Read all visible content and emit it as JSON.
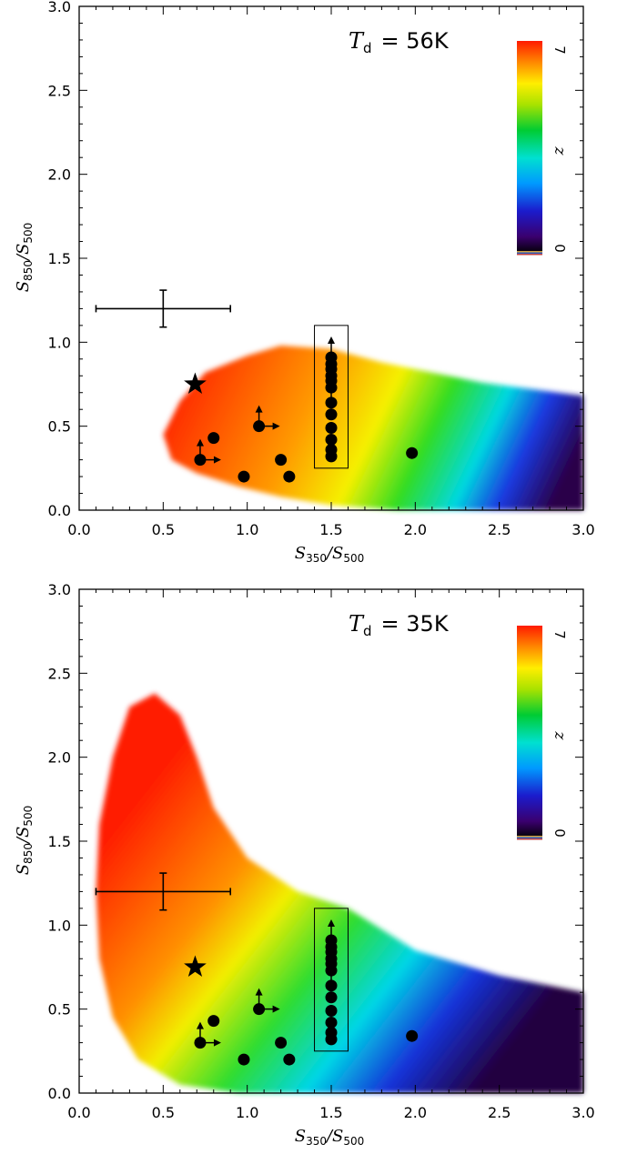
{
  "chart_data": [
    {
      "type": "heatmap",
      "temperature": {
        "symbol": "T",
        "sub": "d",
        "value": "=  56K"
      },
      "xlabel": {
        "main": "S",
        "sub1": "350",
        "mid": "/S",
        "sub2": "500"
      },
      "ylabel": {
        "main": "S",
        "sub1": "850",
        "mid": "/S",
        "sub2": "500"
      },
      "xlim": [
        0.0,
        3.0
      ],
      "ylim": [
        0.0,
        3.0
      ],
      "xticks": [
        "0.0",
        "0.5",
        "1.0",
        "1.5",
        "2.0",
        "2.5",
        "3.0"
      ],
      "yticks": [
        "0.0",
        "0.5",
        "1.0",
        "1.5",
        "2.0",
        "2.5",
        "3.0"
      ],
      "colorbar": {
        "label": "z",
        "min": "0",
        "max": "7"
      },
      "region_outline": [
        [
          0.5,
          0.45
        ],
        [
          0.6,
          0.65
        ],
        [
          0.75,
          0.82
        ],
        [
          1.0,
          0.92
        ],
        [
          1.2,
          0.98
        ],
        [
          1.5,
          0.96
        ],
        [
          1.8,
          0.88
        ],
        [
          2.1,
          0.82
        ],
        [
          2.4,
          0.76
        ],
        [
          2.7,
          0.72
        ],
        [
          3.0,
          0.68
        ],
        [
          3.0,
          0.0
        ],
        [
          1.9,
          0.0
        ],
        [
          1.5,
          0.03
        ],
        [
          1.2,
          0.08
        ],
        [
          0.95,
          0.14
        ],
        [
          0.7,
          0.22
        ],
        [
          0.55,
          0.3
        ]
      ],
      "errorbar": {
        "x": 0.5,
        "y": 1.2,
        "xerr": 0.4,
        "yerr": 0.11
      },
      "star": {
        "x": 0.69,
        "y": 0.75
      },
      "box": {
        "x0": 1.4,
        "x1": 1.6,
        "y0": 0.25,
        "y1": 1.1
      },
      "points": [
        {
          "x": 0.72,
          "y": 0.3,
          "up": true,
          "right": true
        },
        {
          "x": 0.8,
          "y": 0.43
        },
        {
          "x": 0.98,
          "y": 0.2
        },
        {
          "x": 1.07,
          "y": 0.5,
          "up": true,
          "right": true
        },
        {
          "x": 1.2,
          "y": 0.3
        },
        {
          "x": 1.25,
          "y": 0.2
        },
        {
          "x": 1.98,
          "y": 0.34
        },
        {
          "x": 1.5,
          "y": 0.32
        },
        {
          "x": 1.5,
          "y": 0.36
        },
        {
          "x": 1.5,
          "y": 0.42
        },
        {
          "x": 1.5,
          "y": 0.49
        },
        {
          "x": 1.5,
          "y": 0.57
        },
        {
          "x": 1.5,
          "y": 0.64,
          "up": true
        },
        {
          "x": 1.5,
          "y": 0.73
        },
        {
          "x": 1.5,
          "y": 0.77
        },
        {
          "x": 1.5,
          "y": 0.8
        },
        {
          "x": 1.5,
          "y": 0.84
        },
        {
          "x": 1.5,
          "y": 0.87
        },
        {
          "x": 1.5,
          "y": 0.91,
          "up": true
        }
      ]
    },
    {
      "type": "heatmap",
      "temperature": {
        "symbol": "T",
        "sub": "d",
        "value": "=  35K"
      },
      "xlabel": {
        "main": "S",
        "sub1": "350",
        "mid": "/S",
        "sub2": "500"
      },
      "ylabel": {
        "main": "S",
        "sub1": "850",
        "mid": "/S",
        "sub2": "500"
      },
      "xlim": [
        0.0,
        3.0
      ],
      "ylim": [
        0.0,
        3.0
      ],
      "xticks": [
        "0.0",
        "0.5",
        "1.0",
        "1.5",
        "2.0",
        "2.5",
        "3.0"
      ],
      "yticks": [
        "0.0",
        "0.5",
        "1.0",
        "1.5",
        "2.0",
        "2.5",
        "3.0"
      ],
      "colorbar": {
        "label": "z",
        "min": "0",
        "max": "7"
      },
      "region_outline": [
        [
          0.1,
          1.2
        ],
        [
          0.12,
          1.6
        ],
        [
          0.2,
          2.0
        ],
        [
          0.3,
          2.3
        ],
        [
          0.45,
          2.38
        ],
        [
          0.6,
          2.25
        ],
        [
          0.7,
          2.0
        ],
        [
          0.8,
          1.7
        ],
        [
          1.0,
          1.4
        ],
        [
          1.3,
          1.2
        ],
        [
          1.6,
          1.1
        ],
        [
          2.0,
          0.85
        ],
        [
          2.5,
          0.7
        ],
        [
          3.0,
          0.6
        ],
        [
          3.0,
          0.0
        ],
        [
          0.95,
          0.0
        ],
        [
          0.6,
          0.05
        ],
        [
          0.35,
          0.2
        ],
        [
          0.2,
          0.45
        ],
        [
          0.12,
          0.8
        ]
      ],
      "errorbar": {
        "x": 0.5,
        "y": 1.2,
        "xerr": 0.4,
        "yerr": 0.11
      },
      "star": {
        "x": 0.69,
        "y": 0.75
      },
      "box": {
        "x0": 1.4,
        "x1": 1.6,
        "y0": 0.25,
        "y1": 1.1
      },
      "points": [
        {
          "x": 0.72,
          "y": 0.3,
          "up": true,
          "right": true
        },
        {
          "x": 0.8,
          "y": 0.43
        },
        {
          "x": 0.98,
          "y": 0.2
        },
        {
          "x": 1.07,
          "y": 0.5,
          "up": true,
          "right": true
        },
        {
          "x": 1.2,
          "y": 0.3
        },
        {
          "x": 1.25,
          "y": 0.2
        },
        {
          "x": 1.98,
          "y": 0.34
        },
        {
          "x": 1.5,
          "y": 0.32
        },
        {
          "x": 1.5,
          "y": 0.36
        },
        {
          "x": 1.5,
          "y": 0.42
        },
        {
          "x": 1.5,
          "y": 0.49
        },
        {
          "x": 1.5,
          "y": 0.57
        },
        {
          "x": 1.5,
          "y": 0.64,
          "up": true
        },
        {
          "x": 1.5,
          "y": 0.73
        },
        {
          "x": 1.5,
          "y": 0.77
        },
        {
          "x": 1.5,
          "y": 0.8
        },
        {
          "x": 1.5,
          "y": 0.84
        },
        {
          "x": 1.5,
          "y": 0.87
        },
        {
          "x": 1.5,
          "y": 0.91,
          "up": true
        }
      ]
    }
  ]
}
